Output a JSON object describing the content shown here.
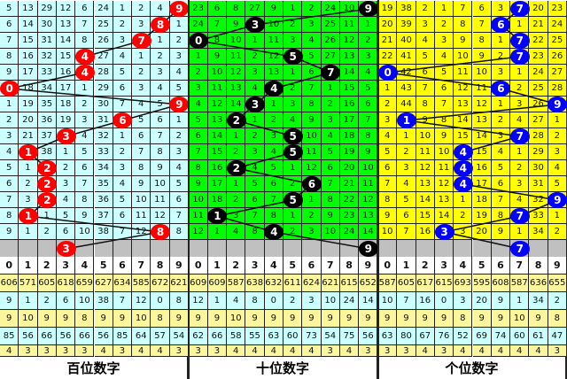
{
  "panels": [
    {
      "label": "百位数字",
      "bg": "#ccffff",
      "ball_color": "#ff0000",
      "rows": [
        [
          5,
          13,
          29,
          12,
          6,
          24,
          1,
          2,
          4,
          9
        ],
        [
          6,
          14,
          30,
          13,
          7,
          25,
          2,
          3,
          8,
          1
        ],
        [
          7,
          15,
          31,
          14,
          8,
          26,
          3,
          7,
          1,
          2
        ],
        [
          8,
          16,
          32,
          15,
          4,
          27,
          4,
          1,
          2,
          3
        ],
        [
          9,
          17,
          33,
          16,
          4,
          28,
          5,
          2,
          3,
          4
        ],
        [
          0,
          18,
          34,
          17,
          1,
          29,
          6,
          3,
          4,
          5
        ],
        [
          1,
          19,
          35,
          18,
          2,
          30,
          7,
          4,
          5,
          9
        ],
        [
          2,
          20,
          36,
          19,
          3,
          31,
          6,
          5,
          6,
          1
        ],
        [
          3,
          21,
          37,
          3,
          4,
          32,
          1,
          6,
          7,
          2
        ],
        [
          4,
          1,
          38,
          1,
          5,
          33,
          2,
          7,
          8,
          3
        ],
        [
          5,
          1,
          2,
          2,
          6,
          34,
          3,
          8,
          9,
          4
        ],
        [
          6,
          2,
          2,
          3,
          7,
          35,
          4,
          9,
          10,
          5
        ],
        [
          7,
          3,
          2,
          4,
          8,
          36,
          5,
          10,
          11,
          6
        ],
        [
          8,
          1,
          1,
          5,
          9,
          37,
          6,
          11,
          12,
          7
        ],
        [
          9,
          1,
          2,
          6,
          10,
          38,
          7,
          12,
          8,
          8
        ]
      ],
      "draws": [
        9,
        8,
        7,
        4,
        4,
        0,
        9,
        6,
        3,
        1,
        2,
        2,
        2,
        1,
        8
      ],
      "next": 3,
      "digits": [
        "0",
        "1",
        "2",
        "3",
        "4",
        "5",
        "6",
        "7",
        "8",
        "9"
      ],
      "stats": [
        [
          606,
          571,
          605,
          618,
          659,
          627,
          634,
          585,
          672,
          621
        ],
        [
          9,
          1,
          2,
          6,
          10,
          38,
          7,
          12,
          0,
          8
        ],
        [
          9,
          10,
          9,
          9,
          8,
          9,
          9,
          10,
          8,
          9
        ],
        [
          85,
          56,
          66,
          56,
          66,
          56,
          85,
          64,
          57,
          54
        ],
        [
          4,
          3,
          3,
          3,
          3,
          4,
          3,
          4,
          4,
          3
        ]
      ]
    },
    {
      "label": "十位数字",
      "bg": "#00ff00",
      "ball_color": "#000000",
      "rows": [
        [
          23,
          6,
          8,
          27,
          9,
          1,
          2,
          24,
          10,
          9
        ],
        [
          24,
          7,
          9,
          3,
          10,
          2,
          3,
          25,
          11,
          1
        ],
        [
          0,
          8,
          10,
          1,
          11,
          3,
          4,
          26,
          12,
          2
        ],
        [
          1,
          9,
          11,
          2,
          12,
          5,
          5,
          27,
          13,
          3
        ],
        [
          2,
          10,
          12,
          3,
          13,
          1,
          6,
          7,
          14,
          4
        ],
        [
          3,
          11,
          13,
          4,
          4,
          2,
          7,
          1,
          15,
          5
        ],
        [
          4,
          12,
          14,
          3,
          1,
          3,
          8,
          2,
          16,
          6
        ],
        [
          5,
          13,
          2,
          1,
          2,
          4,
          9,
          3,
          17,
          7
        ],
        [
          6,
          14,
          1,
          2,
          3,
          5,
          10,
          4,
          18,
          8
        ],
        [
          7,
          15,
          2,
          3,
          4,
          5,
          11,
          5,
          19,
          9
        ],
        [
          8,
          16,
          2,
          4,
          5,
          1,
          12,
          6,
          20,
          10
        ],
        [
          9,
          17,
          1,
          5,
          6,
          2,
          6,
          7,
          21,
          11
        ],
        [
          10,
          18,
          2,
          6,
          7,
          5,
          1,
          8,
          22,
          12
        ],
        [
          11,
          1,
          3,
          7,
          8,
          1,
          2,
          9,
          23,
          13
        ],
        [
          12,
          1,
          4,
          8,
          4,
          2,
          3,
          10,
          24,
          14
        ]
      ],
      "draws": [
        9,
        3,
        0,
        5,
        7,
        4,
        3,
        2,
        5,
        5,
        2,
        6,
        5,
        1,
        4
      ],
      "next": 9,
      "digits": [
        "0",
        "1",
        "2",
        "3",
        "4",
        "5",
        "6",
        "7",
        "8",
        "9"
      ],
      "stats": [
        [
          609,
          609,
          587,
          638,
          632,
          611,
          624,
          621,
          615,
          652
        ],
        [
          12,
          1,
          4,
          8,
          0,
          2,
          3,
          10,
          24,
          14
        ],
        [
          9,
          9,
          10,
          9,
          9,
          9,
          9,
          9,
          9,
          9
        ],
        [
          62,
          66,
          58,
          55,
          63,
          60,
          73,
          54,
          75,
          56
        ],
        [
          3,
          3,
          4,
          4,
          4,
          4,
          4,
          3,
          4,
          3
        ]
      ]
    },
    {
      "label": "个位数字",
      "bg": "#ffff00",
      "ball_color": "#0000ff",
      "rows": [
        [
          19,
          38,
          2,
          1,
          7,
          6,
          3,
          7,
          20,
          23
        ],
        [
          20,
          39,
          3,
          2,
          8,
          7,
          6,
          1,
          21,
          24
        ],
        [
          21,
          40,
          4,
          3,
          9,
          8,
          1,
          7,
          22,
          25
        ],
        [
          22,
          41,
          5,
          4,
          10,
          9,
          2,
          7,
          23,
          26
        ],
        [
          0,
          42,
          6,
          5,
          11,
          10,
          3,
          1,
          24,
          27
        ],
        [
          1,
          43,
          7,
          6,
          12,
          11,
          6,
          2,
          25,
          28
        ],
        [
          2,
          44,
          8,
          7,
          13,
          12,
          1,
          3,
          26,
          9
        ],
        [
          3,
          1,
          9,
          8,
          14,
          13,
          2,
          4,
          27,
          1
        ],
        [
          4,
          1,
          10,
          9,
          15,
          14,
          3,
          7,
          28,
          2
        ],
        [
          5,
          2,
          11,
          10,
          4,
          15,
          4,
          1,
          29,
          3
        ],
        [
          6,
          3,
          12,
          11,
          4,
          16,
          5,
          2,
          30,
          4
        ],
        [
          7,
          4,
          13,
          12,
          4,
          17,
          6,
          3,
          31,
          5
        ],
        [
          8,
          5,
          14,
          13,
          1,
          18,
          7,
          4,
          32,
          9
        ],
        [
          9,
          6,
          15,
          14,
          2,
          19,
          8,
          7,
          33,
          1
        ],
        [
          10,
          7,
          16,
          3,
          3,
          20,
          9,
          1,
          34,
          2
        ]
      ],
      "draws": [
        7,
        6,
        7,
        7,
        0,
        6,
        9,
        1,
        7,
        4,
        4,
        4,
        9,
        7,
        3
      ],
      "next": 7,
      "digits": [
        "0",
        "1",
        "2",
        "3",
        "4",
        "5",
        "6",
        "7",
        "8",
        "9"
      ],
      "stats": [
        [
          587,
          605,
          617,
          615,
          693,
          595,
          608,
          587,
          636,
          655
        ],
        [
          10,
          7,
          16,
          0,
          3,
          20,
          9,
          1,
          34,
          2
        ],
        [
          9,
          9,
          9,
          9,
          8,
          9,
          9,
          10,
          9,
          8
        ],
        [
          63,
          80,
          67,
          76,
          52,
          69,
          74,
          60,
          61,
          47
        ],
        [
          3,
          3,
          4,
          3,
          4,
          4,
          4,
          4,
          4,
          3
        ]
      ]
    }
  ]
}
